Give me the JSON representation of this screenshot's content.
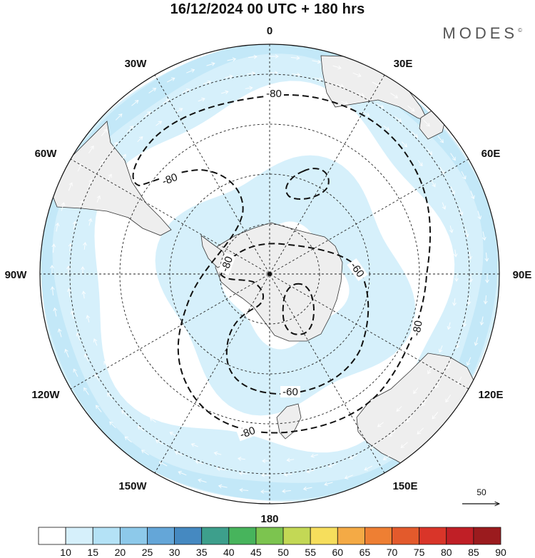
{
  "title": "16/12/2024  00 UTC  + 180 hrs",
  "brand": {
    "name": "MODES",
    "mark": "©"
  },
  "projection": {
    "type": "polar-stereographic",
    "pole": "south"
  },
  "longitude_labels": [
    "0",
    "30E",
    "60E",
    "90E",
    "120E",
    "150E",
    "180",
    "150W",
    "120W",
    "90W",
    "60W",
    "30W"
  ],
  "contour_labels": [
    {
      "text": "-80",
      "where": "north"
    },
    {
      "text": "-80",
      "where": "northwest"
    },
    {
      "text": "-80",
      "where": "west"
    },
    {
      "text": "-60",
      "where": "east-inner"
    },
    {
      "text": "-80",
      "where": "east"
    },
    {
      "text": "-60",
      "where": "south-inner"
    },
    {
      "text": "-80",
      "where": "south"
    }
  ],
  "wind_reference": {
    "value": "50",
    "unit_direction": "arrow-right"
  },
  "colorbar": {
    "ticks": [
      "10",
      "15",
      "20",
      "25",
      "30",
      "35",
      "40",
      "45",
      "50",
      "55",
      "60",
      "65",
      "70",
      "75",
      "80",
      "85",
      "90"
    ],
    "colors": [
      "#ffffff",
      "#d6f0fb",
      "#b4e2f6",
      "#8dc9ea",
      "#64a6d8",
      "#4589c1",
      "#3d9f8c",
      "#47b45c",
      "#7cc44f",
      "#c3d855",
      "#f6de5c",
      "#f4aa45",
      "#ee7f33",
      "#e35a2c",
      "#d93529",
      "#c01f26",
      "#9b1b1e"
    ]
  },
  "colors": {
    "land": "#eeeeee",
    "band_light": "#d6f0fb",
    "band_mid": "#b4e2f6",
    "contour": "#111111",
    "grid": "#222222"
  }
}
